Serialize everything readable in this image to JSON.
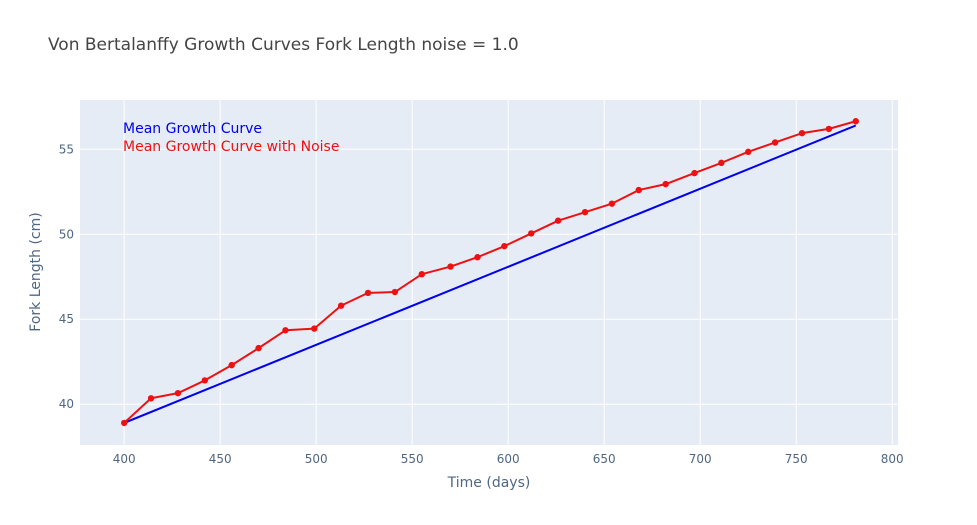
{
  "chart_data": {
    "type": "line",
    "title": "Von Bertalanffy Growth Curves Fork Length noise = 1.0",
    "xlabel": "Time (days)",
    "ylabel": "Fork Length (cm)",
    "xlim": [
      377,
      803
    ],
    "ylim": [
      37.6,
      57.9
    ],
    "x_ticks": [
      400,
      450,
      500,
      550,
      600,
      650,
      700,
      750,
      800
    ],
    "y_ticks": [
      40,
      45,
      50,
      55
    ],
    "grid": true,
    "legend": "none",
    "annotations": [
      {
        "text": "Mean Growth Curve",
        "color": "#0000ee"
      },
      {
        "text": "Mean Growth Curve with Noise",
        "color": "#ee1111"
      }
    ],
    "series": [
      {
        "color": "#0000ee",
        "mode": "lines",
        "x": [
          400,
          781
        ],
        "y": [
          38.9,
          56.4
        ]
      },
      {
        "color": "#ee1111",
        "mode": "lines+markers",
        "x": [
          400,
          414,
          428,
          442,
          456,
          470,
          484,
          499,
          513,
          527,
          541,
          555,
          570,
          584,
          598,
          612,
          626,
          640,
          654,
          668,
          682,
          697,
          711,
          725,
          739,
          753,
          767,
          781
        ],
        "y": [
          38.9,
          40.35,
          40.65,
          41.4,
          42.3,
          43.3,
          44.35,
          44.45,
          45.8,
          46.55,
          46.6,
          47.65,
          48.1,
          48.65,
          49.3,
          50.05,
          50.8,
          51.3,
          51.8,
          52.6,
          52.95,
          53.6,
          54.2,
          54.85,
          55.4,
          55.95,
          56.2,
          56.65
        ]
      }
    ]
  }
}
